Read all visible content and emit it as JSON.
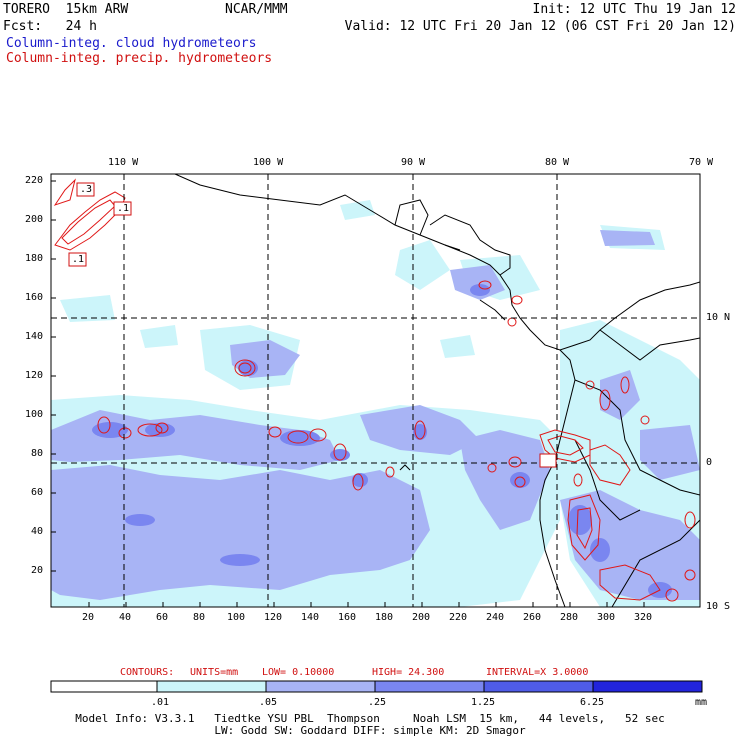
{
  "header": {
    "line1_left": "TORERO  15km ARW",
    "line1_center": "NCAR/MMM",
    "line1_right": "Init: 12 UTC Thu 19 Jan 12",
    "line2_left": "Fcst:   24 h",
    "line2_right": "Valid: 12 UTC Fri 20 Jan 12 (06 CST Fri 20 Jan 12)",
    "field_cloud": "Column-integ. cloud hydrometeors",
    "field_precip": "Column-integ. precip. hydrometeors"
  },
  "colors": {
    "cloud_label": "#1a1acc",
    "precip_label": "#d01010",
    "shade_levels": [
      "#ffffff",
      "#ccf5fa",
      "#a8b4f5",
      "#7a86f0",
      "#4f5ce8",
      "#2224dc"
    ]
  },
  "axes": {
    "top_lon_labels": [
      "110 W",
      "100 W",
      "90 W",
      "80 W",
      "70 W"
    ],
    "right_lat_labels": [
      "10 N",
      "0",
      "10 S"
    ],
    "y_ticks": [
      "220",
      "200",
      "180",
      "160",
      "140",
      "120",
      "100",
      "80",
      "60",
      "40",
      "20"
    ],
    "x_ticks": [
      "20",
      "40",
      "60",
      "80",
      "100",
      "120",
      "140",
      "160",
      "180",
      "200",
      "220",
      "240",
      "260",
      "280",
      "300",
      "320"
    ]
  },
  "box_labels": [
    ".3",
    ".1",
    ".1"
  ],
  "contours_info": {
    "label": "CONTOURS:",
    "units": "UNITS=mm",
    "low": "LOW= 0.10000",
    "high": "HIGH=  24.300",
    "interval": "INTERVAL=X  3.0000"
  },
  "colorbar": {
    "levels": [
      ".01",
      ".05",
      ".25",
      "1.25",
      "6.25"
    ],
    "unit": "mm"
  },
  "footer": {
    "line1": "Model Info: V3.3.1   Tiedtke YSU PBL  Thompson     Noah LSM  15 km,   44 levels,   52 sec",
    "line2": "LW: Godd SW: Goddard DIFF: simple KM: 2D Smagor"
  }
}
